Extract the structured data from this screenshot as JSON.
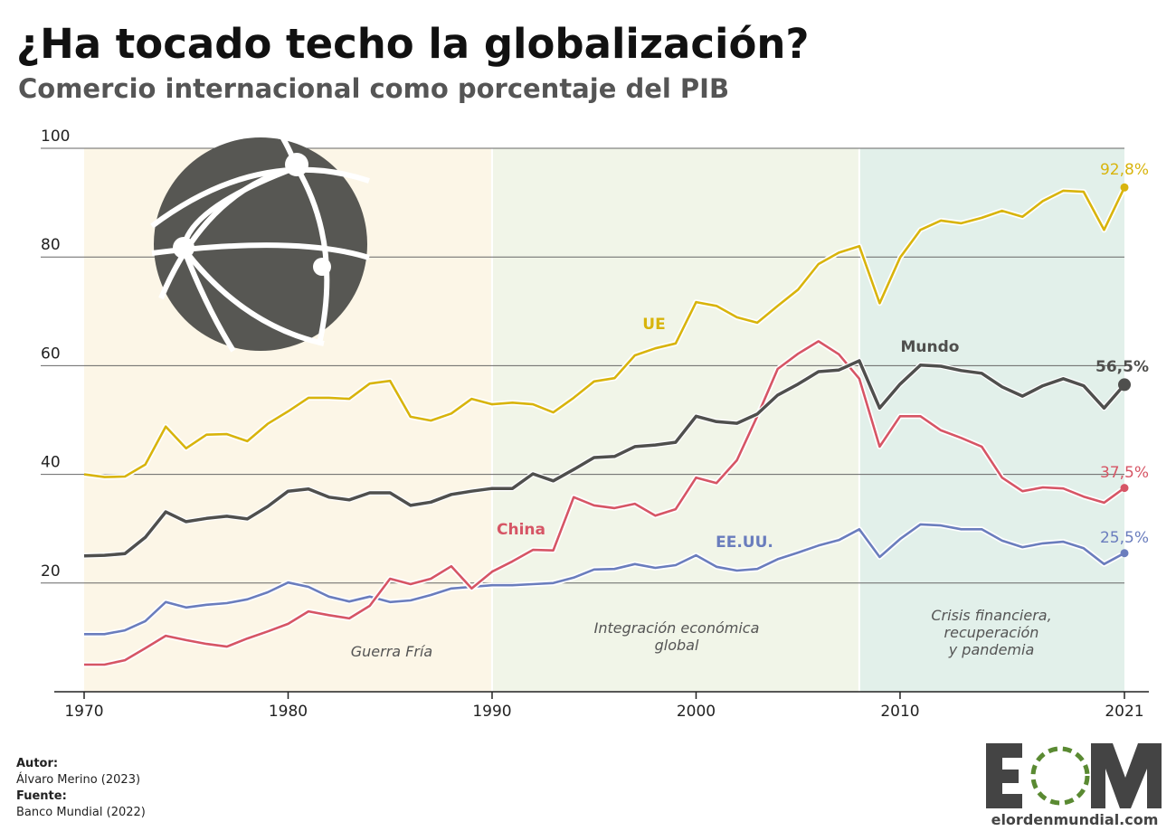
{
  "header": {
    "title": "¿Ha tocado techo la globalización?",
    "subtitle": "Comercio internacional como porcentaje del PIB"
  },
  "chart_data": {
    "type": "line",
    "title": "¿Ha tocado techo la globalización?",
    "subtitle": "Comercio internacional como porcentaje del PIB",
    "xlabel": "",
    "ylabel": "",
    "xlim": [
      1970,
      2021
    ],
    "ylim": [
      0,
      100
    ],
    "x_ticks": [
      "1970",
      "1980",
      "1990",
      "2000",
      "2010",
      "2021"
    ],
    "y_ticks": [
      "20",
      "40",
      "60",
      "80",
      "100"
    ],
    "grid": true,
    "legend": "direct labels on lines",
    "periods": [
      {
        "label": "Guerra Fría",
        "from": 1970,
        "to": 1990,
        "color": "#fcf6e7"
      },
      {
        "label": "Integración económica global",
        "from": 1990,
        "to": 2008,
        "color": "#f1f5e8"
      },
      {
        "label": "Crisis financiera, recuperación y pandemia",
        "from": 2008,
        "to": 2021,
        "color": "#e2f0ea"
      }
    ],
    "x": [
      1970,
      1971,
      1972,
      1973,
      1974,
      1975,
      1976,
      1977,
      1978,
      1979,
      1980,
      1981,
      1982,
      1983,
      1984,
      1985,
      1986,
      1987,
      1988,
      1989,
      1990,
      1991,
      1992,
      1993,
      1994,
      1995,
      1996,
      1997,
      1998,
      1999,
      2000,
      2001,
      2002,
      2003,
      2004,
      2005,
      2006,
      2007,
      2008,
      2009,
      2010,
      2011,
      2012,
      2013,
      2014,
      2015,
      2016,
      2017,
      2018,
      2019,
      2020,
      2021
    ],
    "series": [
      {
        "name": "UE",
        "color": "#d8b40c",
        "end_label": "92,8%",
        "values": [
          40.0,
          39.5,
          39.6,
          41.8,
          48.8,
          44.8,
          47.3,
          47.4,
          46.1,
          49.3,
          51.6,
          54.1,
          54.1,
          53.9,
          56.7,
          57.2,
          50.6,
          49.9,
          51.2,
          53.9,
          52.9,
          53.2,
          52.9,
          51.4,
          54.1,
          57.1,
          57.7,
          61.9,
          63.2,
          64.1,
          71.7,
          71.0,
          68.9,
          67.9,
          71.0,
          74.0,
          78.7,
          80.8,
          82.0,
          71.5,
          79.9,
          85.0,
          86.7,
          86.2,
          87.2,
          88.5,
          87.4,
          90.3,
          92.2,
          92.0,
          85.0,
          92.8
        ]
      },
      {
        "name": "Mundo",
        "color": "#4f4f4d",
        "end_label": "56,5%",
        "values": [
          25.0,
          25.1,
          25.4,
          28.4,
          33.1,
          31.3,
          31.9,
          32.3,
          31.8,
          34.1,
          36.9,
          37.3,
          35.8,
          35.3,
          36.6,
          36.6,
          34.3,
          34.9,
          36.3,
          36.9,
          37.4,
          37.4,
          40.1,
          38.8,
          40.9,
          43.1,
          43.3,
          45.1,
          45.4,
          45.9,
          50.7,
          49.7,
          49.4,
          51.1,
          54.6,
          56.6,
          58.9,
          59.2,
          60.9,
          52.2,
          56.6,
          60.1,
          59.9,
          59.1,
          58.6,
          56.1,
          54.4,
          56.3,
          57.6,
          56.3,
          52.2,
          56.5
        ]
      },
      {
        "name": "China",
        "color": "#d65565",
        "end_label": "37,5%",
        "values": [
          5.0,
          5.0,
          5.8,
          8.0,
          10.3,
          9.5,
          8.8,
          8.3,
          9.8,
          11.1,
          12.5,
          14.8,
          14.1,
          13.5,
          15.8,
          20.8,
          19.8,
          20.8,
          23.1,
          19.0,
          22.1,
          24.0,
          26.1,
          26.0,
          35.8,
          34.3,
          33.8,
          34.6,
          32.4,
          33.6,
          39.4,
          38.4,
          42.6,
          50.7,
          59.4,
          62.2,
          64.5,
          62.1,
          57.6,
          45.1,
          50.7,
          50.7,
          48.1,
          46.7,
          45.1,
          39.4,
          36.9,
          37.6,
          37.4,
          35.9,
          34.8,
          37.5
        ]
      },
      {
        "name": "EE.UU.",
        "color": "#6a7dbd",
        "end_label": "25,5%",
        "values": [
          10.6,
          10.6,
          11.3,
          13.0,
          16.5,
          15.5,
          16.0,
          16.3,
          17.0,
          18.3,
          20.1,
          19.3,
          17.5,
          16.6,
          17.5,
          16.5,
          16.8,
          17.8,
          19.0,
          19.3,
          19.6,
          19.6,
          19.8,
          20.0,
          21.0,
          22.5,
          22.6,
          23.5,
          22.8,
          23.3,
          25.1,
          23.0,
          22.3,
          22.6,
          24.4,
          25.6,
          26.9,
          27.9,
          29.9,
          24.8,
          28.1,
          30.8,
          30.6,
          29.9,
          29.9,
          27.8,
          26.6,
          27.3,
          27.6,
          26.4,
          23.5,
          25.5
        ]
      }
    ]
  },
  "footer": {
    "author_label": "Autor:",
    "author": "Álvaro Merino (2023)",
    "source_label": "Fuente:",
    "source": "Banco Mundial (2022)",
    "logo_text": "EOM",
    "logo_url_text": "elordenmundial.com",
    "icon": "globe-network-icon"
  }
}
